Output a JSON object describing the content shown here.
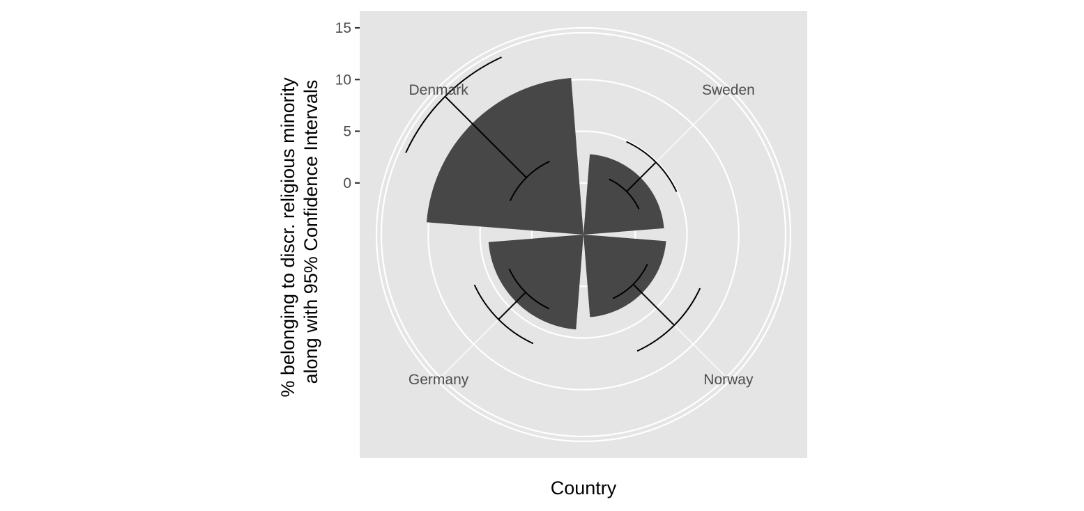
{
  "chart_data": {
    "type": "bar",
    "coord": "polar",
    "xlabel": "Country",
    "ylabel_lines": [
      "% belonging to discr. religious minority",
      "along with 95% Confidence Intervals"
    ],
    "categories": [
      "Sweden",
      "Norway",
      "Germany",
      "Denmark"
    ],
    "values": [
      2.8,
      3.0,
      4.2,
      10.2
    ],
    "ci_lower": [
      0.9,
      1.8,
      2.9,
      2.8
    ],
    "ci_upper": [
      4.9,
      7.4,
      6.6,
      13.9
    ],
    "yticks": [
      0,
      5,
      10,
      15
    ],
    "ylim": [
      -5,
      19.4
    ],
    "grid": true,
    "colors": {
      "panel_bg": "#e5e5e5",
      "grid": "#ffffff",
      "bar": "#474747",
      "errorbar": "#000000",
      "tick_label": "#4d4d4d"
    }
  }
}
